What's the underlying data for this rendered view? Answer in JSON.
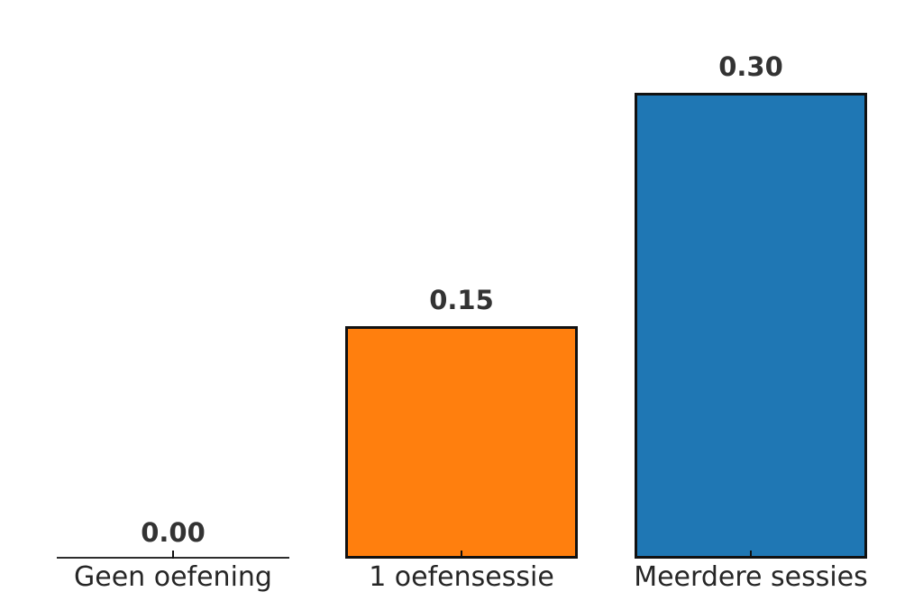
{
  "chart_data": {
    "type": "bar",
    "title": "",
    "categories": [
      "Geen oefening",
      "1 oefensessie",
      "Meerdere sessies"
    ],
    "values": [
      0.0,
      0.15,
      0.3
    ],
    "bars": [
      {
        "category": "Geen oefening",
        "value": 0.0,
        "label": "0.00",
        "fill": null
      },
      {
        "category": "1 oefensessie",
        "value": 0.15,
        "label": "0.15",
        "fill": "#ff7f0e"
      },
      {
        "category": "Meerdere sessies",
        "value": 0.3,
        "label": "0.30",
        "fill": "#1f77b4"
      }
    ],
    "bar_edge_color": "#111111",
    "zero_bar_line_color": "#2d2d2d",
    "value_label_color": "#333333",
    "category_label_color": "#262626",
    "background_color": "#ffffff",
    "xlabel": "",
    "ylabel": "",
    "ylim": [
      0,
      0.34
    ],
    "grid": false,
    "legend": false,
    "y_axis_visible": false,
    "x_axis_spine_visible": false,
    "tick_direction": "in"
  }
}
